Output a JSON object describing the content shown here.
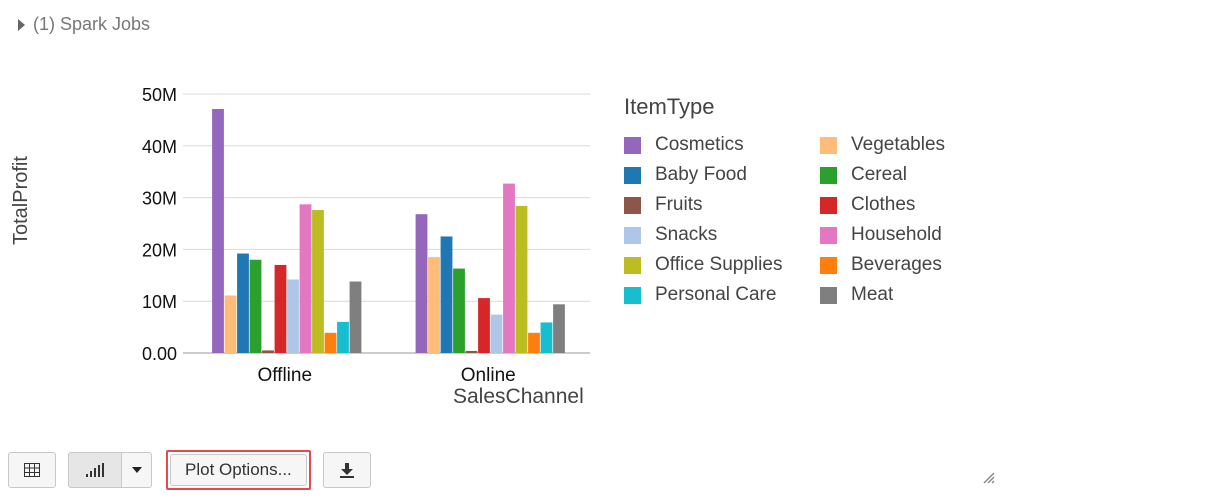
{
  "spark_jobs": {
    "label": "(1) Spark Jobs"
  },
  "toolbar": {
    "plot_options_label": "Plot Options..."
  },
  "icons": {
    "caret": "caret-right-icon",
    "table": "table-icon",
    "chart": "bar-chart-icon",
    "dropdown": "chevron-down-icon",
    "download": "download-icon",
    "resize": "resize-handle-icon"
  },
  "chart_data": {
    "type": "bar",
    "xlabel": "SalesChannel",
    "ylabel": "TotalProfit",
    "legend_title": "ItemType",
    "legend_position": "right",
    "categories": [
      "Offline",
      "Online"
    ],
    "ylim": [
      0,
      50000000
    ],
    "yticks": [
      "0.00",
      "10M",
      "20M",
      "30M",
      "40M",
      "50M"
    ],
    "grid": true,
    "series": [
      {
        "name": "Cosmetics",
        "color": "#9467bd",
        "values": [
          47100000,
          26800000
        ]
      },
      {
        "name": "Vegetables",
        "color": "#ffbb78",
        "values": [
          11100000,
          18500000
        ]
      },
      {
        "name": "Baby Food",
        "color": "#1f77b4",
        "values": [
          19200000,
          22500000
        ]
      },
      {
        "name": "Cereal",
        "color": "#2ca02c",
        "values": [
          18000000,
          16300000
        ]
      },
      {
        "name": "Fruits",
        "color": "#8c564b",
        "values": [
          500000,
          400000
        ]
      },
      {
        "name": "Clothes",
        "color": "#d62728",
        "values": [
          17000000,
          10600000
        ]
      },
      {
        "name": "Snacks",
        "color": "#aec7e8",
        "values": [
          14200000,
          7400000
        ]
      },
      {
        "name": "Household",
        "color": "#e377c2",
        "values": [
          28700000,
          32700000
        ]
      },
      {
        "name": "Office Supplies",
        "color": "#bcbd22",
        "values": [
          27600000,
          28400000
        ]
      },
      {
        "name": "Beverages",
        "color": "#ff7f0e",
        "values": [
          3900000,
          3900000
        ]
      },
      {
        "name": "Personal Care",
        "color": "#17becf",
        "values": [
          6000000,
          5900000
        ]
      },
      {
        "name": "Meat",
        "color": "#7f7f7f",
        "values": [
          13800000,
          9400000
        ]
      }
    ],
    "legend_order": [
      [
        "Cosmetics",
        "Vegetables"
      ],
      [
        "Baby Food",
        "Cereal"
      ],
      [
        "Fruits",
        "Clothes"
      ],
      [
        "Snacks",
        "Household"
      ],
      [
        "Office Supplies",
        "Beverages"
      ],
      [
        "Personal Care",
        "Meat"
      ]
    ]
  }
}
